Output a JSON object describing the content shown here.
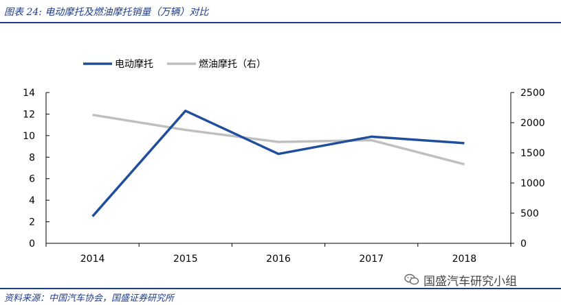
{
  "header": {
    "title": "图表 24: 电动摩托及燃油摩托销量（万辆）对比"
  },
  "footer": {
    "source": "资料来源：中国汽车协会，国盛证券研究所"
  },
  "watermark": {
    "text": "国盛汽车研究小组",
    "icon": "wechat-icon"
  },
  "colors": {
    "accent": "#1f3b8c",
    "series1": "#1f4e9c",
    "series2": "#bfbfbf"
  },
  "chart_data": {
    "type": "line",
    "x": [
      "2014",
      "2015",
      "2016",
      "2017",
      "2018"
    ],
    "series": [
      {
        "name": "电动摩托",
        "axis": "left",
        "values": [
          2.5,
          12.3,
          8.3,
          9.9,
          9.3
        ]
      },
      {
        "name": "燃油摩托（右）",
        "axis": "right",
        "values": [
          2130,
          1880,
          1680,
          1710,
          1310
        ]
      }
    ],
    "y_left": {
      "range": [
        0,
        14
      ],
      "ticks": [
        "0",
        "2",
        "4",
        "6",
        "8",
        "10",
        "12",
        "14"
      ]
    },
    "y_right": {
      "range": [
        0,
        2500
      ],
      "ticks": [
        "0",
        "500",
        "1000",
        "1500",
        "2000",
        "2500"
      ]
    },
    "legend": "top-left",
    "grid": false
  }
}
